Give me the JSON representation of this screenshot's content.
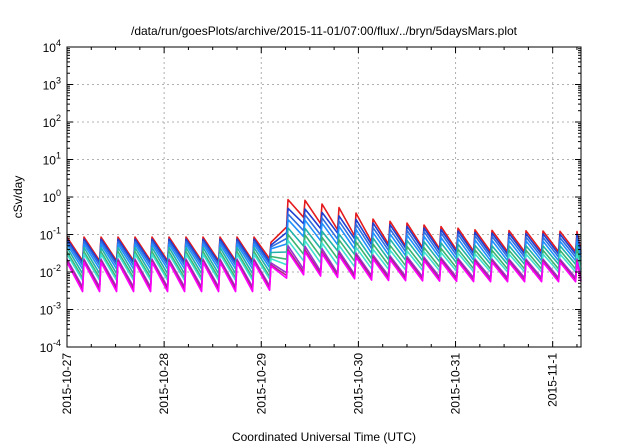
{
  "chart_data": {
    "type": "line",
    "title": "/data/run/goesPlots/archive/2015-11-01/07:00/flux/../bryn/5daysMars.plot",
    "xlabel": "Coordinated Universal Time (UTC)",
    "ylabel": "cSv/day",
    "xlim": [
      "2015-10-27T00:00",
      "2015-11-01T07:00"
    ],
    "ylim": [
      0.0001,
      10000
    ],
    "y_scale": "log",
    "grid": true,
    "legend": "none",
    "x_ticks": [
      {
        "value": "2015-10-27T00:00",
        "label": "2015-10-27"
      },
      {
        "value": "2015-10-28T00:00",
        "label": "2015-10-28"
      },
      {
        "value": "2015-10-29T00:00",
        "label": "2015-10-29"
      },
      {
        "value": "2015-10-30T00:00",
        "label": "2015-10-30"
      },
      {
        "value": "2015-10-31T00:00",
        "label": "2015-10-31"
      },
      {
        "value": "2015-11-01T00:00",
        "label": "2015-11-1"
      }
    ],
    "y_ticks": [
      {
        "value": 0.0001,
        "base": "10",
        "exp": "-4"
      },
      {
        "value": 0.001,
        "base": "10",
        "exp": "-3"
      },
      {
        "value": 0.01,
        "base": "10",
        "exp": "-2"
      },
      {
        "value": 0.1,
        "base": "10",
        "exp": "-1"
      },
      {
        "value": 1,
        "base": "10",
        "exp": "0"
      },
      {
        "value": 10,
        "base": "10",
        "exp": "1"
      },
      {
        "value": 100,
        "base": "10",
        "exp": "2"
      },
      {
        "value": 1000,
        "base": "10",
        "exp": "3"
      },
      {
        "value": 10000,
        "base": "10",
        "exp": "4"
      }
    ],
    "sawtooth_period_hours": 4.2,
    "series": [
      {
        "color": "#e41a1c",
        "x": [
          "2015-10-27T00:00",
          "2015-10-29T01:30",
          "2015-10-29T02:30",
          "2015-10-29T05:30",
          "2015-10-29T06:30",
          "2015-10-29T10:00",
          "2015-10-29T20:00",
          "2015-10-30T04:00",
          "2015-10-30T16:00",
          "2015-10-31T06:00",
          "2015-11-01T07:00"
        ],
        "y_peak": [
          0.085,
          0.085,
          0.06,
          0.05,
          0.85,
          0.85,
          0.5,
          0.25,
          0.18,
          0.13,
          0.12
        ],
        "y_trough": [
          0.02,
          0.02,
          0.025,
          0.02,
          0.3,
          0.3,
          0.12,
          0.06,
          0.045,
          0.035,
          0.035
        ]
      },
      {
        "color": "#1f3fd0",
        "x": [
          "2015-10-27T00:00",
          "2015-10-29T01:30",
          "2015-10-29T02:30",
          "2015-10-29T05:30",
          "2015-10-29T06:30",
          "2015-10-29T10:00",
          "2015-10-29T20:00",
          "2015-10-30T04:00",
          "2015-10-30T16:00",
          "2015-10-31T06:00",
          "2015-11-01T07:00"
        ],
        "y_peak": [
          0.075,
          0.075,
          0.05,
          0.045,
          0.5,
          0.5,
          0.3,
          0.2,
          0.15,
          0.11,
          0.1
        ],
        "y_trough": [
          0.018,
          0.018,
          0.02,
          0.018,
          0.2,
          0.2,
          0.1,
          0.05,
          0.04,
          0.03,
          0.03
        ]
      },
      {
        "color": "#2f6fe0",
        "x": [
          "2015-10-27T00:00",
          "2015-10-29T01:30",
          "2015-10-29T02:30",
          "2015-10-29T05:30",
          "2015-10-29T06:30",
          "2015-10-29T10:00",
          "2015-10-29T20:00",
          "2015-10-30T04:00",
          "2015-10-30T16:00",
          "2015-10-31T06:00",
          "2015-11-01T07:00"
        ],
        "y_peak": [
          0.065,
          0.065,
          0.045,
          0.04,
          0.35,
          0.35,
          0.22,
          0.15,
          0.12,
          0.09,
          0.08
        ],
        "y_trough": [
          0.015,
          0.015,
          0.017,
          0.015,
          0.13,
          0.13,
          0.07,
          0.04,
          0.032,
          0.025,
          0.025
        ]
      },
      {
        "color": "#1e90ff",
        "x": [
          "2015-10-27T00:00",
          "2015-10-29T01:30",
          "2015-10-29T02:30",
          "2015-10-29T05:30",
          "2015-10-29T06:30",
          "2015-10-29T10:00",
          "2015-10-29T20:00",
          "2015-10-30T04:00",
          "2015-10-30T16:00",
          "2015-10-31T06:00",
          "2015-11-01T07:00"
        ],
        "y_peak": [
          0.055,
          0.055,
          0.04,
          0.035,
          0.25,
          0.25,
          0.16,
          0.11,
          0.09,
          0.07,
          0.065
        ],
        "y_trough": [
          0.012,
          0.012,
          0.014,
          0.012,
          0.09,
          0.09,
          0.05,
          0.03,
          0.026,
          0.02,
          0.02
        ]
      },
      {
        "color": "#20b2aa",
        "x": [
          "2015-10-27T00:00",
          "2015-10-29T01:30",
          "2015-10-29T02:30",
          "2015-10-29T05:30",
          "2015-10-29T06:30",
          "2015-10-29T10:00",
          "2015-10-29T20:00",
          "2015-10-30T04:00",
          "2015-10-30T16:00",
          "2015-10-31T06:00",
          "2015-11-01T07:00"
        ],
        "y_peak": [
          0.045,
          0.045,
          0.032,
          0.03,
          0.15,
          0.15,
          0.1,
          0.08,
          0.065,
          0.05,
          0.05
        ],
        "y_trough": [
          0.009,
          0.009,
          0.011,
          0.01,
          0.05,
          0.05,
          0.035,
          0.022,
          0.02,
          0.016,
          0.016
        ]
      },
      {
        "color": "#3cb371",
        "x": [
          "2015-10-27T00:00",
          "2015-10-29T01:30",
          "2015-10-29T02:30",
          "2015-10-29T05:30",
          "2015-10-29T06:30",
          "2015-10-29T10:00",
          "2015-10-29T20:00",
          "2015-10-30T04:00",
          "2015-10-30T16:00",
          "2015-10-31T06:00",
          "2015-11-01T07:00"
        ],
        "y_peak": [
          0.035,
          0.035,
          0.025,
          0.024,
          0.1,
          0.1,
          0.07,
          0.055,
          0.045,
          0.038,
          0.038
        ],
        "y_trough": [
          0.007,
          0.007,
          0.008,
          0.008,
          0.03,
          0.03,
          0.022,
          0.016,
          0.014,
          0.012,
          0.012
        ]
      },
      {
        "color": "#40e0d0",
        "x": [
          "2015-10-27T00:00",
          "2015-10-29T01:30",
          "2015-10-29T02:30",
          "2015-10-29T05:30",
          "2015-10-29T06:30",
          "2015-10-29T10:00",
          "2015-10-29T20:00",
          "2015-10-30T04:00",
          "2015-10-30T16:00",
          "2015-10-31T06:00",
          "2015-11-01T07:00"
        ],
        "y_peak": [
          0.03,
          0.03,
          0.022,
          0.02,
          0.07,
          0.07,
          0.05,
          0.04,
          0.035,
          0.03,
          0.03
        ],
        "y_trough": [
          0.006,
          0.006,
          0.007,
          0.007,
          0.02,
          0.02,
          0.015,
          0.012,
          0.011,
          0.01,
          0.01
        ]
      },
      {
        "color": "#9932cc",
        "x": [
          "2015-10-27T00:00",
          "2015-10-29T01:30",
          "2015-10-29T02:30",
          "2015-10-29T05:30",
          "2015-10-29T06:30",
          "2015-10-29T10:00",
          "2015-10-29T20:00",
          "2015-10-30T04:00",
          "2015-10-30T16:00",
          "2015-10-31T06:00",
          "2015-11-01T07:00"
        ],
        "y_peak": [
          0.022,
          0.022,
          0.017,
          0.016,
          0.05,
          0.05,
          0.035,
          0.028,
          0.025,
          0.022,
          0.022
        ],
        "y_trough": [
          0.004,
          0.004,
          0.0045,
          0.0045,
          0.012,
          0.012,
          0.009,
          0.008,
          0.0075,
          0.007,
          0.007
        ]
      },
      {
        "color": "#b22283",
        "x": [
          "2015-10-27T00:00",
          "2015-10-29T01:30",
          "2015-10-29T02:30",
          "2015-10-29T05:30",
          "2015-10-29T06:30",
          "2015-10-29T10:00",
          "2015-10-29T20:00",
          "2015-10-30T04:00",
          "2015-10-30T16:00",
          "2015-10-31T06:00",
          "2015-11-01T07:00"
        ],
        "y_peak": [
          0.02,
          0.02,
          0.015,
          0.014,
          0.04,
          0.04,
          0.03,
          0.025,
          0.022,
          0.02,
          0.02
        ],
        "y_trough": [
          0.0035,
          0.0035,
          0.004,
          0.004,
          0.01,
          0.01,
          0.008,
          0.007,
          0.0065,
          0.006,
          0.006
        ]
      },
      {
        "color": "#ff00ff",
        "x": [
          "2015-10-27T00:00",
          "2015-10-29T01:30",
          "2015-10-29T02:30",
          "2015-10-29T05:30",
          "2015-10-29T06:30",
          "2015-10-29T10:00",
          "2015-10-29T20:00",
          "2015-10-30T04:00",
          "2015-10-30T16:00",
          "2015-10-31T06:00",
          "2015-11-01T07:00"
        ],
        "y_peak": [
          0.018,
          0.018,
          0.014,
          0.013,
          0.035,
          0.035,
          0.027,
          0.022,
          0.02,
          0.018,
          0.018
        ],
        "y_trough": [
          0.003,
          0.003,
          0.0035,
          0.0035,
          0.0085,
          0.0085,
          0.007,
          0.006,
          0.0058,
          0.0055,
          0.0055
        ]
      }
    ]
  }
}
